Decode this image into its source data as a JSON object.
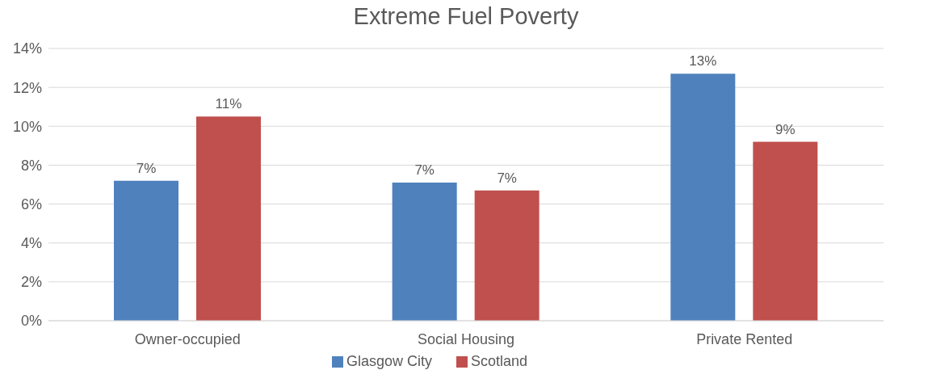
{
  "chart_data": {
    "type": "bar",
    "title": "Extreme Fuel Poverty",
    "categories": [
      "Owner-occupied",
      "Social Housing",
      "Private Rented"
    ],
    "series": [
      {
        "name": "Glasgow City",
        "color": "#4f81bd",
        "values": [
          7.2,
          7.1,
          12.7
        ],
        "value_labels": [
          "7%",
          "7%",
          "13%"
        ]
      },
      {
        "name": "Scotland",
        "color": "#c0504d",
        "values": [
          10.5,
          6.7,
          9.2
        ],
        "value_labels": [
          "11%",
          "7%",
          "9%"
        ]
      }
    ],
    "ylim": [
      0,
      14
    ],
    "yticks": [
      {
        "value": 0,
        "label": "0%"
      },
      {
        "value": 2,
        "label": "2%"
      },
      {
        "value": 4,
        "label": "4%"
      },
      {
        "value": 6,
        "label": "6%"
      },
      {
        "value": 8,
        "label": "8%"
      },
      {
        "value": 10,
        "label": "10%"
      },
      {
        "value": 12,
        "label": "12%"
      },
      {
        "value": 14,
        "label": "14%"
      }
    ],
    "grid": "y",
    "legend": "bottom"
  }
}
